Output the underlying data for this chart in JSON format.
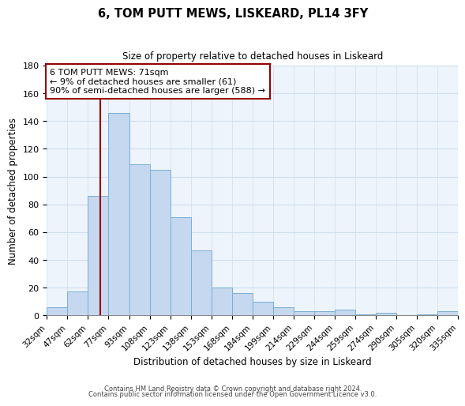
{
  "title": "6, TOM PUTT MEWS, LISKEARD, PL14 3FY",
  "subtitle": "Size of property relative to detached houses in Liskeard",
  "xlabel": "Distribution of detached houses by size in Liskeard",
  "ylabel": "Number of detached properties",
  "bar_values": [
    6,
    17,
    86,
    146,
    109,
    105,
    71,
    47,
    20,
    16,
    10,
    6,
    3,
    3,
    4,
    1,
    2,
    0,
    1,
    3
  ],
  "bin_labels": [
    "32sqm",
    "47sqm",
    "62sqm",
    "77sqm",
    "93sqm",
    "108sqm",
    "123sqm",
    "138sqm",
    "153sqm",
    "168sqm",
    "184sqm",
    "199sqm",
    "214sqm",
    "229sqm",
    "244sqm",
    "259sqm",
    "274sqm",
    "290sqm",
    "305sqm",
    "320sqm",
    "335sqm"
  ],
  "bar_color": "#c5d8ef",
  "bar_edge_color": "#7aaed6",
  "grid_color": "#ccdff0",
  "vline_color": "#990000",
  "annotation_text": "6 TOM PUTT MEWS: 71sqm\n← 9% of detached houses are smaller (61)\n90% of semi-detached houses are larger (588) →",
  "annotation_box_color": "#ffffff",
  "annotation_box_edge": "#990000",
  "ylim": [
    0,
    180
  ],
  "yticks": [
    0,
    20,
    40,
    60,
    80,
    100,
    120,
    140,
    160,
    180
  ],
  "footer1": "Contains HM Land Registry data © Crown copyright and database right 2024.",
  "footer2": "Contains public sector information licensed under the Open Government Licence v3.0.",
  "bg_color": "#eef4fb",
  "fig_bg_color": "#ffffff"
}
